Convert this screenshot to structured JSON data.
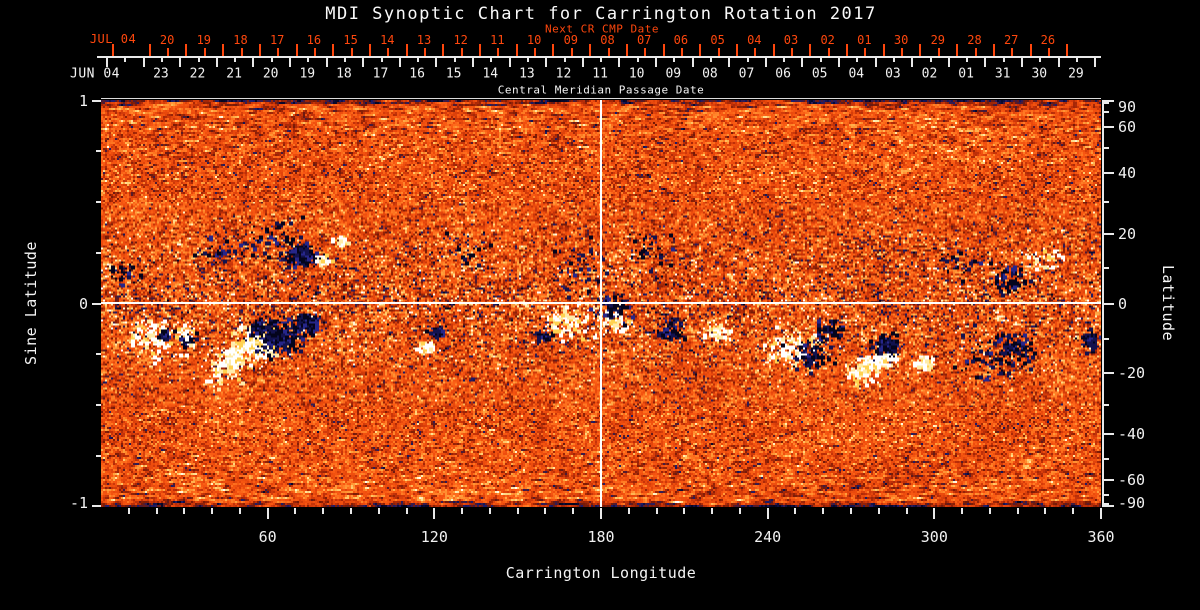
{
  "title": "MDI Synoptic Chart for Carrington Rotation 2017",
  "axes": {
    "next_cr": {
      "title": "Next CR CMP Date",
      "month_label": "JUL 04",
      "days": [
        "20",
        "19",
        "18",
        "17",
        "16",
        "15",
        "14",
        "13",
        "12",
        "11",
        "10",
        "09",
        "08",
        "07",
        "06",
        "05",
        "04",
        "03",
        "02",
        "01",
        "30",
        "29",
        "28",
        "27",
        "26"
      ]
    },
    "cmp": {
      "title": "Central Meridian Passage Date",
      "month_label": "JUN 04",
      "days": [
        "23",
        "22",
        "21",
        "20",
        "19",
        "18",
        "17",
        "16",
        "15",
        "14",
        "13",
        "12",
        "11",
        "10",
        "09",
        "08",
        "07",
        "06",
        "05",
        "04",
        "03",
        "02",
        "01",
        "31",
        "30",
        "29"
      ]
    },
    "bottom": {
      "title": "Carrington Longitude",
      "tick_labels": [
        "60",
        "120",
        "180",
        "240",
        "300",
        "360"
      ]
    },
    "left": {
      "title": "Sine Latitude",
      "tick_labels": [
        "1",
        "0",
        "-1"
      ]
    },
    "right": {
      "title": "Latitude",
      "tick_labels": [
        "90",
        "60",
        "40",
        "20",
        "0",
        "-20",
        "-40",
        "-60",
        "-90"
      ]
    }
  },
  "colors": {
    "background": "#000000",
    "text": "#f5f5f5",
    "accent_red": "#ff470d"
  },
  "chart_data": {
    "type": "heatmap",
    "description": "Full-sun synoptic magnetogram: line-of-sight magnetic field vs Carrington longitude and sine latitude. Orange granular background = weak field, white/yellow = strong positive polarity, dark navy/black = strong negative polarity. Activity belt clusters near +/-20 deg latitude.",
    "xlim": [
      0,
      360
    ],
    "x_major_ticks": [
      60,
      120,
      180,
      240,
      300,
      360
    ],
    "x_minor_step_deg": 10,
    "sine_lat_lim": [
      -1,
      1
    ],
    "sine_lat_major_ticks": [
      1,
      0,
      -1
    ],
    "sine_lat_minor_ticks": [
      0.75,
      0.5,
      0.25,
      -0.25,
      -0.5,
      -0.75
    ],
    "lat_major_ticks": [
      90,
      60,
      40,
      20,
      0,
      -20,
      -40,
      -60,
      -90
    ],
    "lat_minor_ticks": [
      80,
      70,
      50,
      30,
      10,
      -10,
      -30,
      -50,
      -70,
      -80
    ],
    "crosshair": {
      "longitude": 180,
      "latitude": 0
    },
    "date_axis": {
      "days_per_rotation": 27.3,
      "tick_interval": "1 day, minor at half day"
    },
    "colormap": {
      "strong_negative": "#04041c",
      "negative": "#16164f",
      "weak_negative": "#8a1c04",
      "zero": "#ef5512",
      "weak_positive": "#ff9e3c",
      "positive": "#ffd87a",
      "strong_positive": "#ffffff"
    },
    "active_regions": [
      {
        "lon": 56,
        "sin_lat": -0.2,
        "polarity": "positive",
        "r_deg": 7,
        "n": 420,
        "core": true
      },
      {
        "lon": 48,
        "sin_lat": -0.28,
        "polarity": "positive",
        "r_deg": 5,
        "n": 200,
        "core": true
      },
      {
        "lon": 64,
        "sin_lat": -0.17,
        "polarity": "negative",
        "r_deg": 7,
        "n": 420,
        "core": true
      },
      {
        "lon": 74,
        "sin_lat": -0.1,
        "polarity": "negative",
        "r_deg": 4,
        "n": 140
      },
      {
        "lon": 57,
        "sin_lat": -0.12,
        "polarity": "negative",
        "r_deg": 3,
        "n": 90
      },
      {
        "lon": 31,
        "sin_lat": -0.18,
        "polarity": "negative",
        "r_deg": 2.5,
        "n": 70,
        "core": true
      },
      {
        "lon": 24,
        "sin_lat": -0.17,
        "polarity": "positive",
        "r_deg": 8,
        "n": 110
      },
      {
        "lon": 44,
        "sin_lat": -0.33,
        "polarity": "positive",
        "r_deg": 6,
        "n": 80
      },
      {
        "lon": 18,
        "sin_lat": -0.16,
        "polarity": "positive",
        "r_deg": 7,
        "n": 80
      },
      {
        "lon": 23,
        "sin_lat": -0.16,
        "polarity": "negative",
        "r_deg": 2,
        "n": 50,
        "core": true
      },
      {
        "lon": 72,
        "sin_lat": 0.24,
        "polarity": "negative",
        "r_deg": 5,
        "n": 220,
        "core": true
      },
      {
        "lon": 80,
        "sin_lat": 0.21,
        "polarity": "positive",
        "r_deg": 2,
        "n": 90,
        "core": true
      },
      {
        "lon": 86,
        "sin_lat": 0.3,
        "polarity": "positive",
        "r_deg": 2,
        "n": 40
      },
      {
        "lon": 62,
        "sin_lat": 0.31,
        "polarity": "negative",
        "r_deg": 8,
        "n": 70
      },
      {
        "lon": 43,
        "sin_lat": 0.27,
        "polarity": "negative",
        "r_deg": 7,
        "n": 50
      },
      {
        "lon": 121,
        "sin_lat": -0.14,
        "polarity": "negative",
        "r_deg": 2.2,
        "n": 60,
        "core": true
      },
      {
        "lon": 118,
        "sin_lat": -0.22,
        "polarity": "positive",
        "r_deg": 2.5,
        "n": 60
      },
      {
        "lon": 131,
        "sin_lat": 0.26,
        "polarity": "negative",
        "r_deg": 7,
        "n": 40
      },
      {
        "lon": 159,
        "sin_lat": -0.16,
        "polarity": "negative",
        "r_deg": 2.2,
        "n": 80,
        "core": true
      },
      {
        "lon": 168,
        "sin_lat": -0.1,
        "polarity": "positive",
        "r_deg": 6,
        "n": 110
      },
      {
        "lon": 184,
        "sin_lat": -0.09,
        "polarity": "positive",
        "r_deg": 5,
        "n": 90
      },
      {
        "lon": 184,
        "sin_lat": -0.02,
        "polarity": "negative",
        "r_deg": 5,
        "n": 80
      },
      {
        "lon": 173,
        "sin_lat": 0.17,
        "polarity": "negative",
        "r_deg": 9,
        "n": 50
      },
      {
        "lon": 196,
        "sin_lat": 0.26,
        "polarity": "negative",
        "r_deg": 7,
        "n": 40
      },
      {
        "lon": 205,
        "sin_lat": -0.14,
        "polarity": "negative",
        "r_deg": 4,
        "n": 80
      },
      {
        "lon": 222,
        "sin_lat": -0.14,
        "polarity": "positive",
        "r_deg": 4,
        "n": 70
      },
      {
        "lon": 248,
        "sin_lat": -0.23,
        "polarity": "positive",
        "r_deg": 7,
        "n": 180
      },
      {
        "lon": 256,
        "sin_lat": -0.26,
        "polarity": "negative",
        "r_deg": 6,
        "n": 110
      },
      {
        "lon": 262,
        "sin_lat": -0.14,
        "polarity": "negative",
        "r_deg": 4,
        "n": 60
      },
      {
        "lon": 277,
        "sin_lat": -0.31,
        "polarity": "positive",
        "r_deg": 4,
        "n": 260,
        "core": true,
        "elong": [
          3,
          -2
        ]
      },
      {
        "lon": 283,
        "sin_lat": -0.21,
        "polarity": "negative",
        "r_deg": 4,
        "n": 220,
        "core": true
      },
      {
        "lon": 296,
        "sin_lat": -0.3,
        "polarity": "positive",
        "r_deg": 3,
        "n": 110,
        "core": true
      },
      {
        "lon": 322,
        "sin_lat": -0.26,
        "polarity": "negative",
        "r_deg": 10,
        "n": 110
      },
      {
        "lon": 331,
        "sin_lat": -0.22,
        "polarity": "negative",
        "r_deg": 5,
        "n": 80
      },
      {
        "lon": 328,
        "sin_lat": 0.11,
        "polarity": "negative",
        "r_deg": 6,
        "n": 90
      },
      {
        "lon": 310,
        "sin_lat": 0.2,
        "polarity": "negative",
        "r_deg": 8,
        "n": 40
      },
      {
        "lon": 340,
        "sin_lat": 0.22,
        "polarity": "positive",
        "r_deg": 5,
        "n": 50
      },
      {
        "lon": 356,
        "sin_lat": -0.19,
        "polarity": "negative",
        "r_deg": 4,
        "n": 90,
        "core": true
      },
      {
        "lon": 9,
        "sin_lat": 0.15,
        "polarity": "negative",
        "r_deg": 5,
        "n": 30
      }
    ]
  }
}
